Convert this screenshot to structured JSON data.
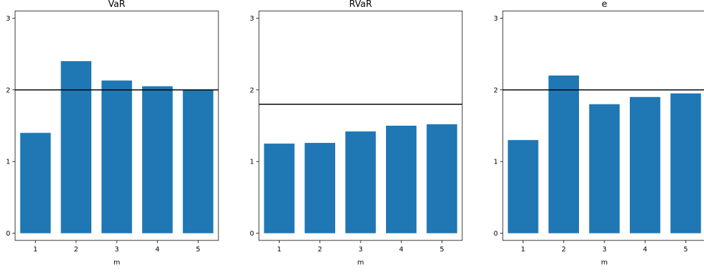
{
  "chart_data": [
    {
      "type": "bar",
      "title": "VaR",
      "xlabel": "m",
      "ylabel": "",
      "categories": [
        "1",
        "2",
        "3",
        "4",
        "5"
      ],
      "values": [
        1.4,
        2.4,
        2.13,
        2.05,
        2.0
      ],
      "reference_line": 2.0,
      "ylim": [
        -0.1,
        3.1
      ],
      "yticks": [
        0,
        1,
        2,
        3
      ],
      "grid": false,
      "bar_color": "#1f77b4",
      "line_color": "#000000"
    },
    {
      "type": "bar",
      "title": "RVaR",
      "xlabel": "m",
      "ylabel": "",
      "categories": [
        "1",
        "2",
        "3",
        "4",
        "5"
      ],
      "values": [
        1.25,
        1.26,
        1.42,
        1.5,
        1.52
      ],
      "reference_line": 1.8,
      "ylim": [
        -0.1,
        3.1
      ],
      "yticks": [
        0,
        1,
        2,
        3
      ],
      "grid": false,
      "bar_color": "#1f77b4",
      "line_color": "#000000"
    },
    {
      "type": "bar",
      "title": "e",
      "xlabel": "m",
      "ylabel": "",
      "categories": [
        "1",
        "2",
        "3",
        "4",
        "5"
      ],
      "values": [
        1.3,
        2.2,
        1.8,
        1.9,
        1.95
      ],
      "reference_line": 2.0,
      "ylim": [
        -0.1,
        3.1
      ],
      "yticks": [
        0,
        1,
        2,
        3
      ],
      "grid": false,
      "bar_color": "#1f77b4",
      "line_color": "#000000"
    }
  ]
}
